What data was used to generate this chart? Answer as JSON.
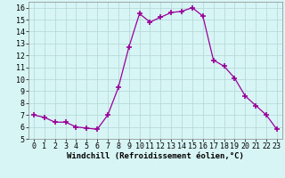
{
  "x": [
    0,
    1,
    2,
    3,
    4,
    5,
    6,
    7,
    8,
    9,
    10,
    11,
    12,
    13,
    14,
    15,
    16,
    17,
    18,
    19,
    20,
    21,
    22,
    23
  ],
  "y": [
    7,
    6.8,
    6.4,
    6.4,
    6.0,
    5.9,
    5.8,
    7.0,
    9.3,
    12.7,
    15.5,
    14.8,
    15.2,
    15.6,
    15.7,
    16.0,
    15.3,
    11.6,
    11.1,
    10.1,
    8.6,
    7.8,
    7.0,
    5.8
  ],
  "line_color": "#990099",
  "marker": "+",
  "marker_size": 4,
  "marker_lw": 1.2,
  "bg_color": "#d8f5f5",
  "grid_color": "#b8dada",
  "xlabel": "Windchill (Refroidissement éolien,°C)",
  "xlabel_fontsize": 6.5,
  "tick_fontsize": 6,
  "ylim": [
    5,
    16.5
  ],
  "xlim": [
    -0.5,
    23.5
  ],
  "yticks": [
    5,
    6,
    7,
    8,
    9,
    10,
    11,
    12,
    13,
    14,
    15,
    16
  ],
  "xticks": [
    0,
    1,
    2,
    3,
    4,
    5,
    6,
    7,
    8,
    9,
    10,
    11,
    12,
    13,
    14,
    15,
    16,
    17,
    18,
    19,
    20,
    21,
    22,
    23
  ]
}
